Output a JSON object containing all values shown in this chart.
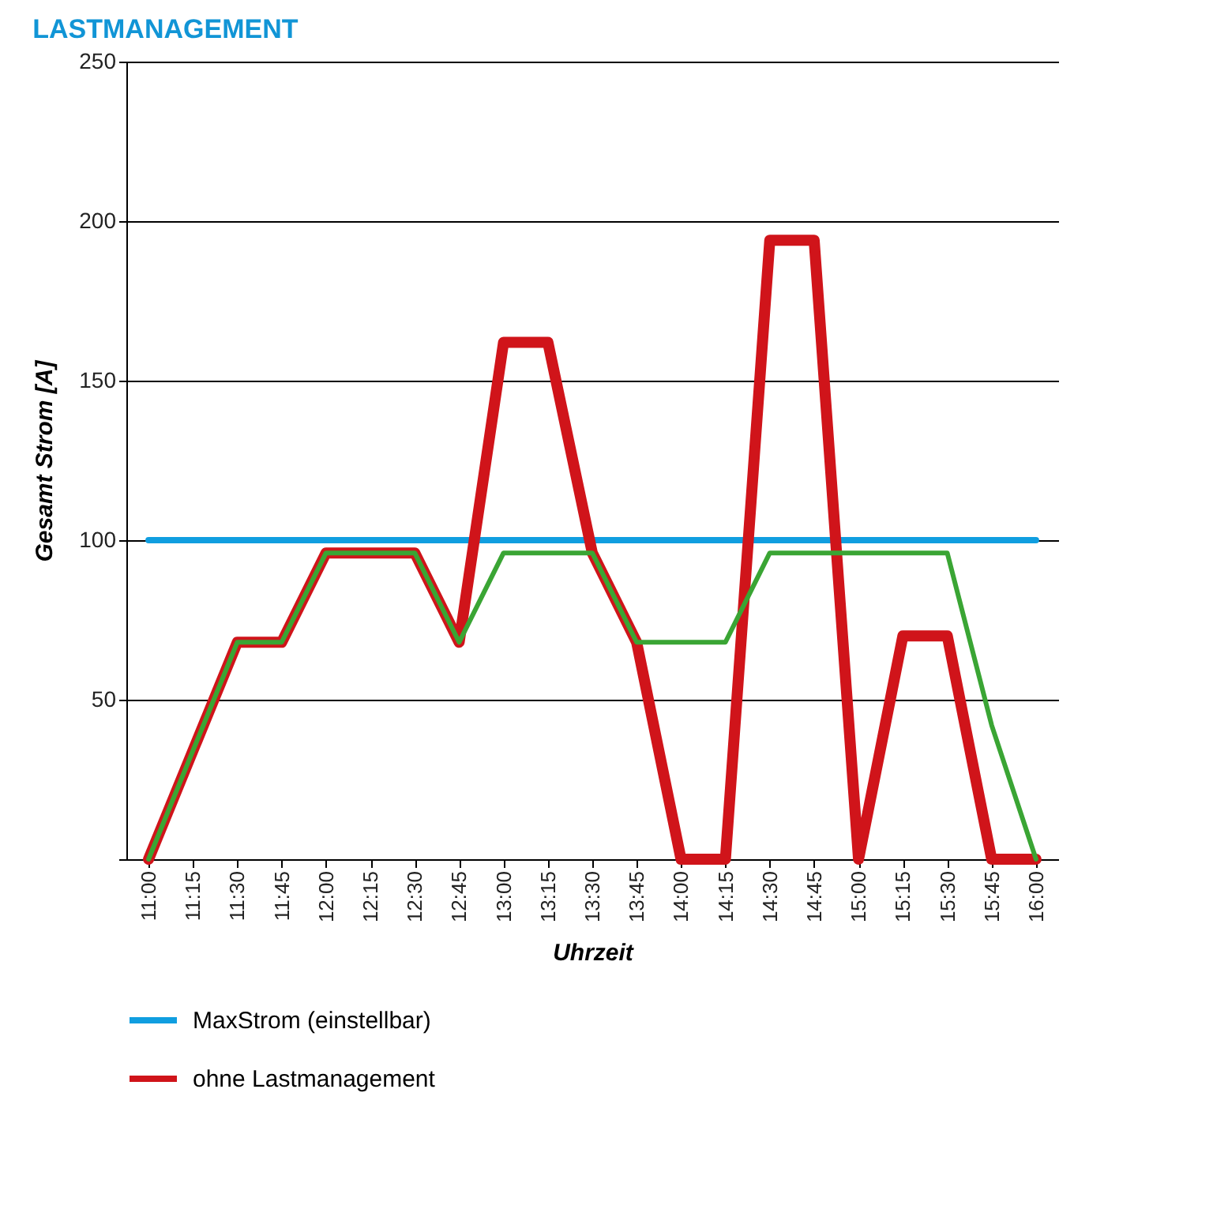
{
  "chart_data": {
    "type": "line",
    "title": "LASTMANAGEMENT",
    "xlabel": "Uhrzeit",
    "ylabel": "Gesamt Strom [A]",
    "categories": [
      "11:00",
      "11:15",
      "11:30",
      "11:45",
      "12:00",
      "12:15",
      "12:30",
      "12:45",
      "13:00",
      "13:15",
      "13:30",
      "13:45",
      "14:00",
      "14:15",
      "14:30",
      "14:45",
      "15:00",
      "15:15",
      "15:30",
      "15:45",
      "16:00"
    ],
    "series": [
      {
        "name": "MaxStrom (einstellbar)",
        "color": "#109ee0",
        "values": [
          100,
          100,
          100,
          100,
          100,
          100,
          100,
          100,
          100,
          100,
          100,
          100,
          100,
          100,
          100,
          100,
          100,
          100,
          100,
          100,
          100
        ]
      },
      {
        "name": "ohne Lastmanagement",
        "color": "#d0141a",
        "values": [
          0,
          34,
          68,
          68,
          96,
          96,
          96,
          68,
          162,
          162,
          96,
          68,
          0,
          0,
          194,
          194,
          0,
          70,
          70,
          0,
          0
        ]
      },
      {
        "color": "#3aa534",
        "values": [
          0,
          34,
          68,
          68,
          96,
          96,
          96,
          68,
          96,
          96,
          96,
          68,
          68,
          68,
          96,
          96,
          96,
          96,
          96,
          42,
          0
        ]
      }
    ],
    "ylim": [
      0,
      250
    ],
    "yticks": [
      {
        "value": 0,
        "label": null
      },
      50,
      100,
      150,
      200,
      250
    ],
    "grid": "y",
    "legend": "bottom",
    "line_style": "solid",
    "marker": "none"
  }
}
